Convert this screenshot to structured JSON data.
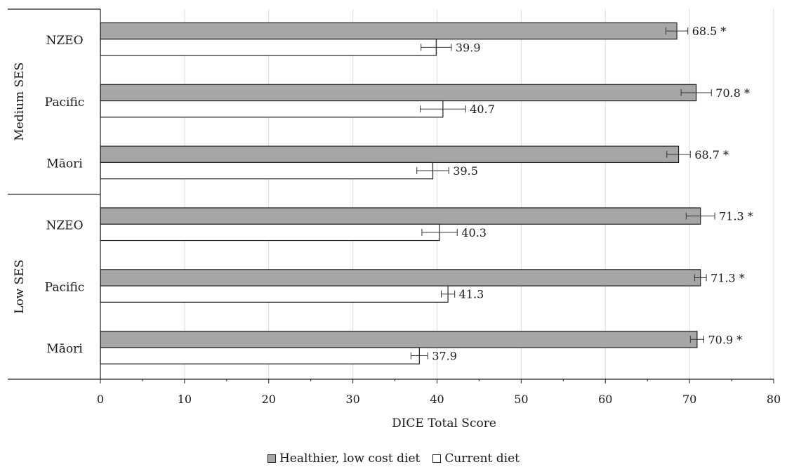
{
  "chart_data": {
    "type": "bar",
    "orientation": "horizontal",
    "xlabel": "DICE Total Score",
    "ylabel": "",
    "xlim": [
      0,
      80
    ],
    "xticks": [
      0,
      10,
      20,
      30,
      40,
      50,
      60,
      70,
      80
    ],
    "grid": true,
    "legend_position": "bottom",
    "groups": [
      {
        "name": "Medium SES",
        "categories": [
          "NZEO",
          "Pacific",
          "Māori"
        ]
      },
      {
        "name": "Low SES",
        "categories": [
          "NZEO",
          "Pacific",
          "Māori"
        ]
      }
    ],
    "series": [
      {
        "name": "Healthier, low cost diet",
        "color": "#a6a6a6",
        "values": [
          68.5,
          70.8,
          68.7,
          71.3,
          71.3,
          70.9
        ],
        "errors": [
          1.3,
          1.8,
          1.4,
          1.7,
          0.7,
          0.8
        ],
        "labels": [
          "68.5 *",
          "70.8 *",
          "68.7 *",
          "71.3 *",
          "71.3 *",
          "70.9 *"
        ]
      },
      {
        "name": "Current diet",
        "color": "#ffffff",
        "values": [
          39.9,
          40.7,
          39.5,
          40.3,
          41.3,
          37.9
        ],
        "errors": [
          1.8,
          2.7,
          1.9,
          2.1,
          0.8,
          1.0
        ],
        "labels": [
          "39.9",
          "40.7",
          "39.5",
          "40.3",
          "41.3",
          "37.9"
        ]
      }
    ]
  }
}
